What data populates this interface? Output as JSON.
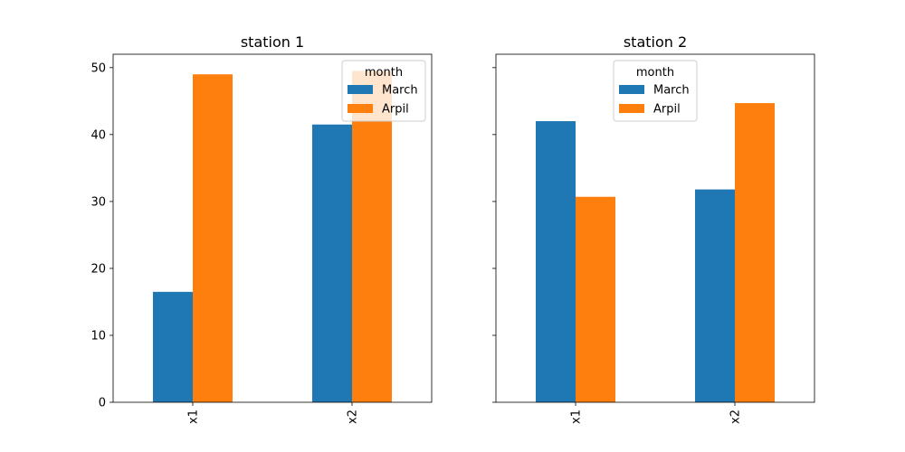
{
  "chart_data": [
    {
      "type": "bar",
      "title": "station 1",
      "categories": [
        "x1",
        "x2"
      ],
      "series": [
        {
          "name": "March",
          "values": [
            16.5,
            41.5
          ]
        },
        {
          "name": "Arpil",
          "values": [
            49.0,
            49.5
          ]
        }
      ],
      "ylim": [
        0,
        52
      ],
      "yticks": [
        0,
        10,
        20,
        30,
        40,
        50
      ],
      "legend": {
        "title": "month",
        "placement": "top-right"
      },
      "grid": false
    },
    {
      "type": "bar",
      "title": "station 2",
      "categories": [
        "x1",
        "x2"
      ],
      "series": [
        {
          "name": "March",
          "values": [
            42.0,
            31.8
          ]
        },
        {
          "name": "Arpil",
          "values": [
            30.7,
            44.7
          ]
        }
      ],
      "ylim": [
        0,
        52
      ],
      "yticks": [
        0,
        10,
        20,
        30,
        40,
        50
      ],
      "legend": {
        "title": "month",
        "placement": "top-center"
      },
      "grid": false
    }
  ],
  "colors": {
    "March": "#1f77b4",
    "Arpil": "#ff7f0e"
  }
}
